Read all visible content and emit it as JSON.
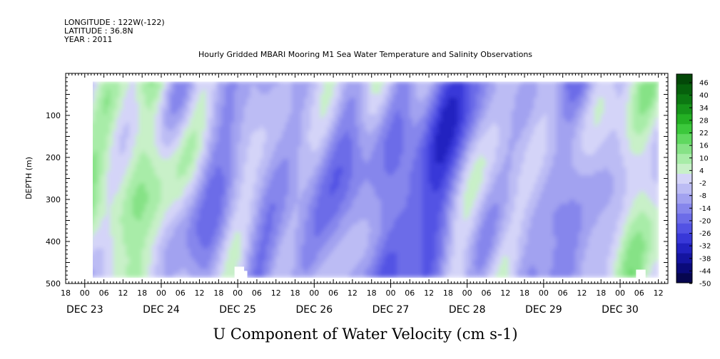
{
  "header": {
    "longitude": "LONGITUDE : 122W(-122)",
    "latitude": "LATITUDE : 36.8N",
    "year": "YEAR : 2011"
  },
  "chart_data": {
    "type": "heatmap",
    "title": "Hourly Gridded MBARI Mooring M1 Sea Water Temperature and Salinity Observations",
    "xlabel": "U Component of Water Velocity (cm s-1)",
    "ylabel": "DEPTH (m)",
    "y_range": [
      0,
      500
    ],
    "y_ticks": [
      100,
      200,
      300,
      400,
      500
    ],
    "y_reversed": true,
    "data_depth_range": [
      20,
      485
    ],
    "x_range": [
      "2011-12-22T18:00",
      "2011-12-30T15:00"
    ],
    "data_x_range": [
      "2011-12-23T00:00",
      "2011-12-30T12:00"
    ],
    "hour_ticks": [
      "18",
      "00",
      "06",
      "12",
      "18",
      "00",
      "06",
      "12",
      "18",
      "00",
      "06",
      "12",
      "18",
      "00",
      "06",
      "12",
      "18",
      "00",
      "06",
      "12",
      "18",
      "00",
      "06",
      "12",
      "18",
      "00",
      "06",
      "12",
      "18",
      "00",
      "06",
      "12"
    ],
    "day_labels": [
      "DEC 23",
      "DEC 24",
      "DEC 25",
      "DEC 26",
      "DEC 27",
      "DEC 28",
      "DEC 29",
      "DEC 30"
    ],
    "colorbar": {
      "min": -50,
      "max": 50,
      "tick_labels": [
        "46",
        "40",
        "34",
        "28",
        "22",
        "16",
        "10",
        "4",
        "-2",
        "-8",
        "-14",
        "-20",
        "-26",
        "-32",
        "-38",
        "-44",
        "-50"
      ],
      "colors_low_to_high": [
        "#06064f",
        "#0a0a7a",
        "#1414a0",
        "#2222c0",
        "#3838d8",
        "#5252e4",
        "#6c6ce8",
        "#8686ec",
        "#a2a2f0",
        "#bcbcf4",
        "#d4d4f8",
        "#c8f0c8",
        "#a8eca8",
        "#86e286",
        "#60d860",
        "#3cc83c",
        "#24b024",
        "#16941a",
        "#0c7812",
        "#06600c",
        "#034808"
      ]
    }
  }
}
